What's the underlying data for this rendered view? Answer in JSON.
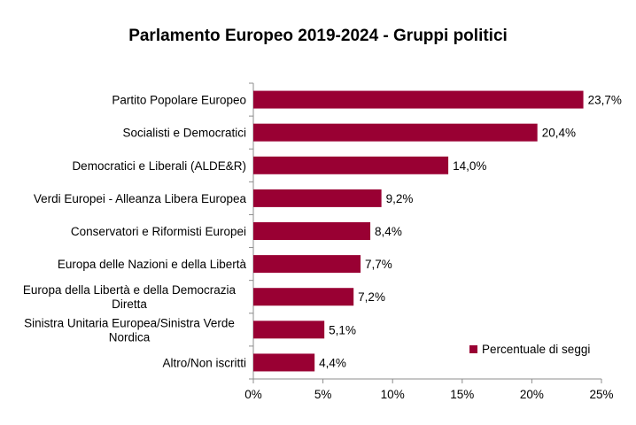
{
  "chart_data": {
    "type": "bar",
    "orientation": "horizontal",
    "title": "Parlamento Europeo 2019-2024 - Gruppi politici",
    "categories": [
      [
        "Partito Popolare Europeo"
      ],
      [
        "Socialisti e Democratici"
      ],
      [
        "Democratici e Liberali (ALDE&R)"
      ],
      [
        "Verdi Europei - Alleanza Libera Europea"
      ],
      [
        "Conservatori e Riformisti Europei"
      ],
      [
        "Europa delle Nazioni e della Libertà"
      ],
      [
        "Europa della Libertà e della Democrazia",
        "Diretta"
      ],
      [
        "Sinistra Unitaria Europea/Sinistra Verde",
        "Nordica"
      ],
      [
        "Altro/Non iscritti"
      ]
    ],
    "series": [
      {
        "name": "Percentuale di seggi",
        "values": [
          23.7,
          20.4,
          14.0,
          9.2,
          8.4,
          7.7,
          7.2,
          5.1,
          4.4
        ],
        "labels": [
          "23,7%",
          "20,4%",
          "14,0%",
          "9,2%",
          "8,4%",
          "7,7%",
          "7,2%",
          "5,1%",
          "4,4%"
        ]
      }
    ],
    "xlim": [
      0,
      25
    ],
    "xticks": [
      0,
      5,
      10,
      15,
      20,
      25
    ],
    "xtick_labels": [
      "0%",
      "5%",
      "10%",
      "15%",
      "20%",
      "25%"
    ],
    "grid": false,
    "legend_position": "bottom-right",
    "bar_color": "#990033"
  }
}
